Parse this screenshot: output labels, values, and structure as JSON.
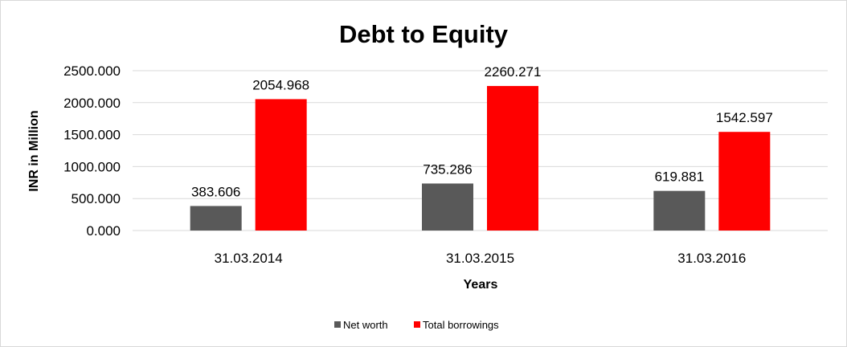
{
  "chart_data": {
    "type": "bar",
    "title": "Debt to Equity",
    "xlabel": "Years",
    "ylabel": "INR in Million",
    "categories": [
      "31.03.2014",
      "31.03.2015",
      "31.03.2016"
    ],
    "series": [
      {
        "name": "Net worth",
        "color": "#595959",
        "values": [
          383.606,
          735.286,
          619.881
        ],
        "labels": [
          "383.606",
          "735.286",
          "619.881"
        ]
      },
      {
        "name": "Total borrowings",
        "color": "#ff0000",
        "values": [
          2054.968,
          2260.271,
          1542.597
        ],
        "labels": [
          "2054.968",
          "2260.271",
          "1542.597"
        ]
      }
    ],
    "ylim": [
      0,
      2500
    ],
    "yticks": [
      "0.000",
      "500.000",
      "1000.000",
      "1500.000",
      "2000.000",
      "2500.000"
    ],
    "grid": true,
    "legend": "bottom"
  }
}
